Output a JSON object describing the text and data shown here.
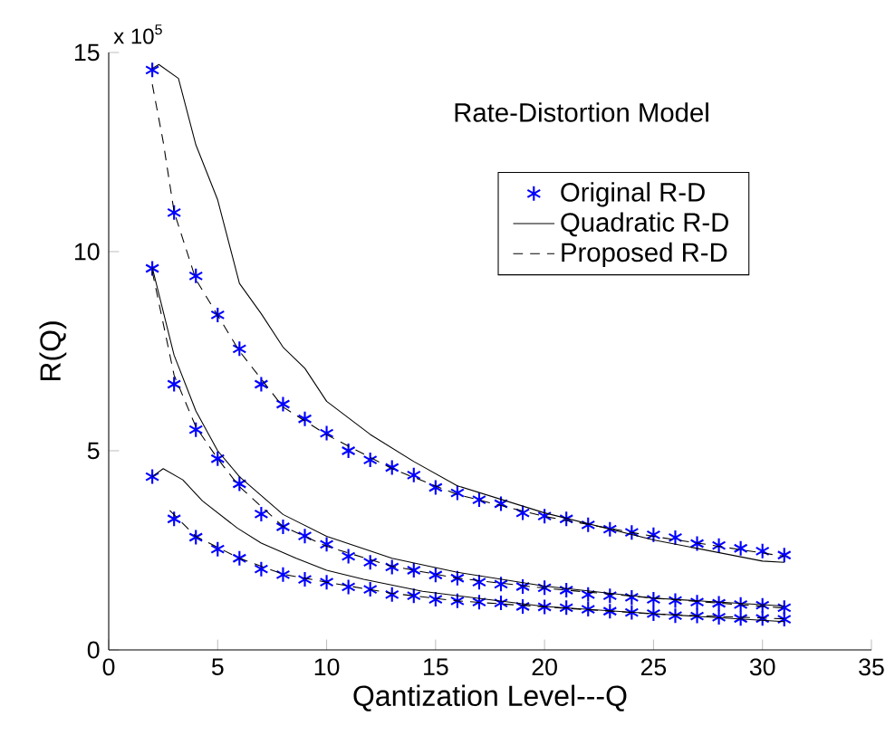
{
  "chart_data": {
    "type": "scatter",
    "title": "Rate-Distortion Model",
    "xlabel": "Qantization Level---Q",
    "ylabel": "R(Q)",
    "annotations": [
      "x 10$^{5}$"
    ],
    "xlim": [
      0,
      35
    ],
    "ylim": [
      0,
      15
    ],
    "xticks": [
      0,
      5,
      10,
      15,
      20,
      25,
      30,
      35
    ],
    "yticks": [
      0,
      5,
      10,
      15
    ],
    "grid": false,
    "legend": "top right",
    "series": [
      {
        "name": "Original R-D",
        "marker": "cross",
        "color": "#0000ff",
        "x": [
          2,
          3,
          4,
          5,
          6,
          7,
          8,
          9,
          10,
          11,
          12,
          13,
          14,
          15,
          16,
          17,
          18,
          19,
          20,
          21,
          22,
          23,
          24,
          25,
          26,
          27,
          28,
          29,
          30,
          31
        ],
        "values": [
          14.56,
          10.98,
          9.39,
          8.41,
          7.56,
          6.67,
          6.17,
          5.8,
          5.44,
          5.0,
          4.77,
          4.58,
          4.39,
          4.08,
          3.94,
          3.77,
          3.67,
          3.44,
          3.36,
          3.29,
          3.14,
          3.03,
          2.95,
          2.89,
          2.82,
          2.67,
          2.62,
          2.55,
          2.48,
          2.38
        ]
      },
      {
        "marker": "cross",
        "color": "#0000ff",
        "x": [
          2,
          3,
          4,
          5,
          6,
          7,
          8,
          9,
          10,
          11,
          12,
          13,
          14,
          15,
          16,
          17,
          18,
          19,
          20,
          21,
          22,
          23,
          24,
          25,
          26,
          27,
          28,
          29,
          30,
          31
        ],
        "values": [
          9.58,
          6.67,
          5.53,
          4.8,
          4.17,
          3.41,
          3.09,
          2.86,
          2.65,
          2.35,
          2.2,
          2.08,
          2.0,
          1.88,
          1.8,
          1.7,
          1.65,
          1.59,
          1.56,
          1.5,
          1.39,
          1.36,
          1.32,
          1.27,
          1.24,
          1.2,
          1.17,
          1.14,
          1.12,
          1.06
        ]
      },
      {
        "marker": "cross",
        "color": "#0000ff",
        "x": [
          2,
          3,
          4,
          5,
          6,
          7,
          8,
          9,
          10,
          11,
          12,
          13,
          14,
          15,
          16,
          17,
          18,
          19,
          20,
          21,
          22,
          23,
          24,
          25,
          26,
          27,
          28,
          29,
          30,
          31
        ],
        "values": [
          4.35,
          3.29,
          2.83,
          2.53,
          2.3,
          2.03,
          1.89,
          1.77,
          1.7,
          1.58,
          1.52,
          1.39,
          1.36,
          1.27,
          1.23,
          1.2,
          1.18,
          1.09,
          1.08,
          1.06,
          1.02,
          0.97,
          0.94,
          0.91,
          0.86,
          0.85,
          0.82,
          0.79,
          0.79,
          0.77
        ]
      },
      {
        "name": "Quadratic R-D",
        "type": "line",
        "line_style": "solid",
        "color": "#000000",
        "x": [
          2,
          2.3,
          3.2,
          4,
          5,
          6,
          7,
          8,
          9,
          10,
          12,
          14,
          16,
          20,
          25,
          30,
          31
        ],
        "values": [
          14.6,
          14.7,
          14.35,
          12.68,
          11.3,
          9.2,
          8.44,
          7.6,
          7.07,
          6.24,
          5.41,
          4.73,
          4.12,
          3.44,
          2.76,
          2.23,
          2.2
        ]
      },
      {
        "type": "line",
        "line_style": "solid",
        "color": "#000000",
        "x": [
          2,
          3,
          4,
          5,
          6,
          8,
          10,
          13,
          16,
          20,
          25,
          31
        ],
        "values": [
          9.6,
          7.4,
          6.0,
          5.0,
          4.35,
          3.4,
          2.85,
          2.3,
          1.95,
          1.6,
          1.3,
          1.1
        ]
      },
      {
        "type": "line",
        "line_style": "solid",
        "color": "#000000",
        "x": [
          2,
          2.5,
          3.4,
          4.3,
          5.9,
          7,
          8.6,
          10,
          11.7,
          14.4,
          20,
          25.5,
          31
        ],
        "values": [
          4.35,
          4.55,
          4.27,
          3.74,
          3.06,
          2.68,
          2.3,
          2.0,
          1.77,
          1.47,
          1.09,
          0.89,
          0.71
        ]
      },
      {
        "name": "Proposed R-D",
        "type": "line",
        "line_style": "dashed",
        "color": "#000000",
        "x": [
          2,
          2.5,
          3,
          4,
          6,
          8,
          10,
          13,
          16,
          20,
          25,
          31
        ],
        "values": [
          14.2,
          12.76,
          11.0,
          9.3,
          7.5,
          6.1,
          5.4,
          4.55,
          3.9,
          3.35,
          2.85,
          2.35
        ]
      },
      {
        "type": "line",
        "line_style": "dashed",
        "color": "#000000",
        "x": [
          2,
          3,
          4,
          5,
          6,
          8,
          10,
          13,
          16,
          20,
          25,
          31
        ],
        "values": [
          9.5,
          6.9,
          5.6,
          4.8,
          4.1,
          3.1,
          2.6,
          2.1,
          1.8,
          1.55,
          1.3,
          1.05
        ]
      },
      {
        "type": "line",
        "line_style": "dashed",
        "color": "#000000",
        "x": [
          2.8,
          4,
          6,
          8,
          10,
          13,
          16,
          20,
          25,
          31
        ],
        "values": [
          3.5,
          2.85,
          2.3,
          1.9,
          1.7,
          1.42,
          1.23,
          1.08,
          0.9,
          0.78
        ]
      }
    ]
  }
}
